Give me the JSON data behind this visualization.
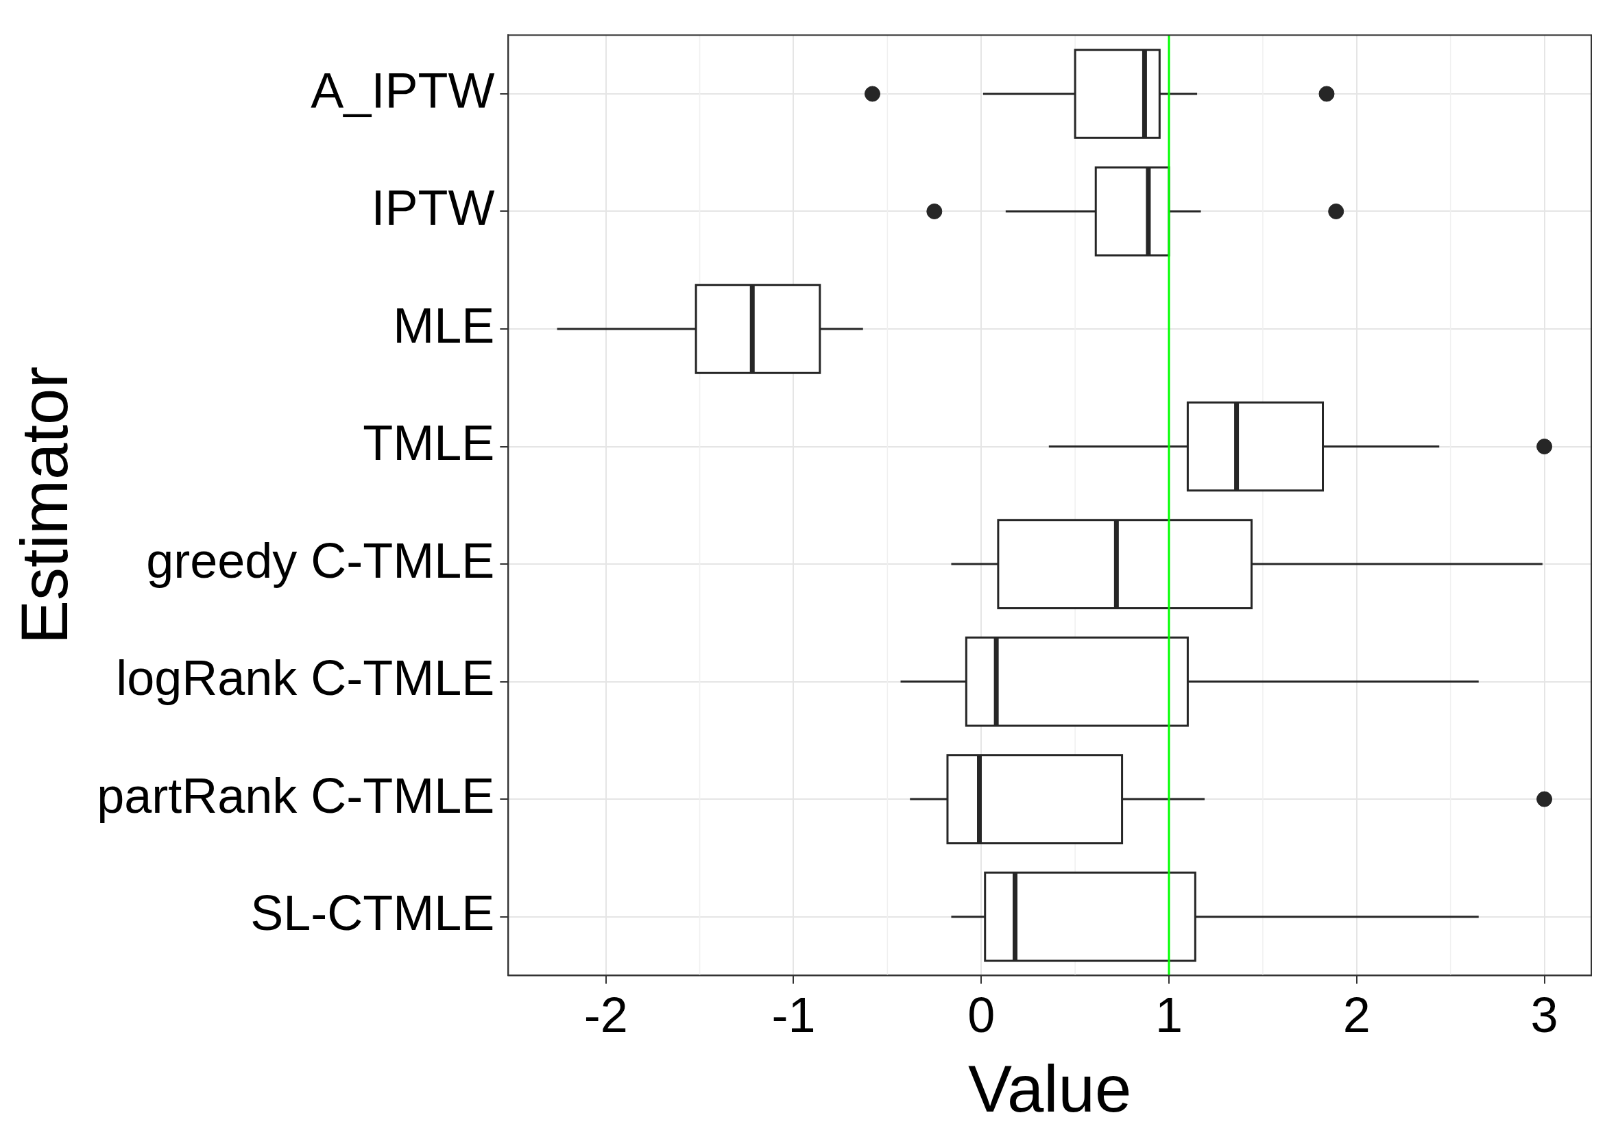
{
  "chart_data": {
    "type": "box",
    "orientation": "horizontal",
    "xlabel": "Value",
    "ylabel": "Estimator",
    "categories": [
      "A_IPTW",
      "IPTW",
      "MLE",
      "TMLE",
      "greedy C-TMLE",
      "logRank C-TMLE",
      "partRank C-TMLE",
      "SL-CTMLE"
    ],
    "boxes": [
      {
        "low": 0.01,
        "q1": 0.5,
        "median": 0.87,
        "q3": 0.95,
        "high": 1.15,
        "outliers": [
          -0.58,
          1.84
        ]
      },
      {
        "low": 0.13,
        "q1": 0.61,
        "median": 0.89,
        "q3": 1.0,
        "high": 1.17,
        "outliers": [
          -0.25,
          1.89
        ]
      },
      {
        "low": -2.26,
        "q1": -1.52,
        "median": -1.22,
        "q3": -0.86,
        "high": -0.63
      },
      {
        "low": 0.36,
        "q1": 1.1,
        "median": 1.36,
        "q3": 1.82,
        "high": 2.44,
        "outliers": [
          3.0
        ]
      },
      {
        "low": -0.16,
        "q1": 0.09,
        "median": 0.72,
        "q3": 1.44,
        "high": 2.99
      },
      {
        "low": -0.43,
        "q1": -0.08,
        "median": 0.08,
        "q3": 1.1,
        "high": 2.65
      },
      {
        "low": -0.38,
        "q1": -0.18,
        "median": -0.01,
        "q3": 0.75,
        "high": 1.19,
        "outliers": [
          3.0
        ]
      },
      {
        "low": -0.16,
        "q1": 0.02,
        "median": 0.18,
        "q3": 1.14,
        "high": 2.65
      }
    ],
    "color": "#262626",
    "xlim": [
      -2.52,
      3.25
    ],
    "xticks": [
      -2,
      -1,
      0,
      1,
      2,
      3
    ],
    "ref_lines": [
      {
        "axis": "x",
        "value": 1,
        "color": "#00ff00"
      }
    ],
    "grid": true,
    "legend": false
  }
}
